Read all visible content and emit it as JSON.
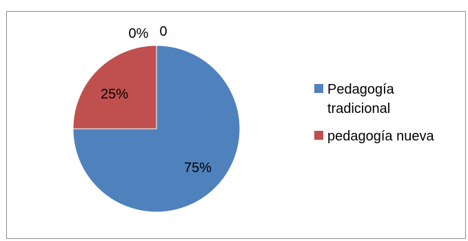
{
  "chart_data": {
    "type": "pie",
    "title": "",
    "categories": [
      "Pedagogía tradicional",
      "pedagogía nueva",
      "",
      ""
    ],
    "values": [
      75,
      25,
      0,
      0
    ],
    "labels": [
      "75%",
      "25%",
      "0%",
      "0"
    ],
    "colors": [
      "#4f81bd",
      "#c0504d",
      "#9bbb59",
      "#8064a2"
    ],
    "legend_position": "right"
  },
  "legend": [
    {
      "label": "Pedagogía tradicional",
      "color": "#4f81bd"
    },
    {
      "label": "pedagogía nueva",
      "color": "#c0504d"
    }
  ]
}
